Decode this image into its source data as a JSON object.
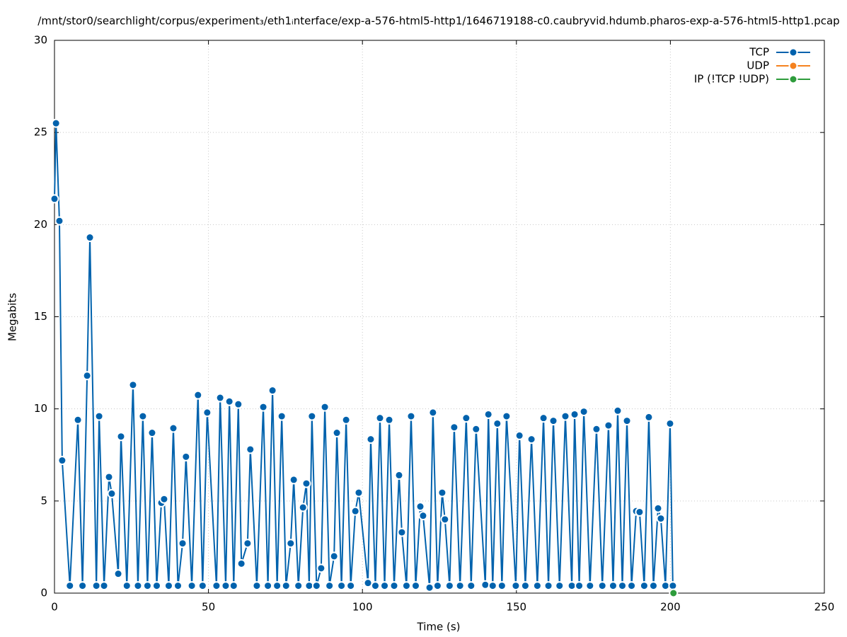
{
  "chart_data": {
    "type": "line",
    "title": "/mnt/stor0/searchlight/corpus/experiment₃/eth1ᵢnterface/exp-a-576-html5-http1/1646719188-c0.caubryvid.hdumb.pharos-exp-a-576-html5-http1.pcap",
    "x_label": "Time (s)",
    "y_label": "Megabits",
    "xlim": [
      0,
      250
    ],
    "ylim": [
      0,
      30
    ],
    "xticks": [
      0,
      50,
      100,
      150,
      200,
      250
    ],
    "yticks": [
      0,
      5,
      10,
      15,
      20,
      25,
      30
    ],
    "grid": true,
    "legend": "top-right",
    "series": [
      {
        "name": "TCP",
        "color": "#0062ad",
        "x": [
          0,
          0.5,
          1.6,
          2.5,
          5,
          7.6,
          9.1,
          10.6,
          11.5,
          13.6,
          14.5,
          16.1,
          17.7,
          18.6,
          20.7,
          21.6,
          23.5,
          25.5,
          27.1,
          28.7,
          30.2,
          31.7,
          33.2,
          34.7,
          35.6,
          37.1,
          38.6,
          40.1,
          41.6,
          42.7,
          44.6,
          46.6,
          48.1,
          49.6,
          52.6,
          53.8,
          55.6,
          56.8,
          58.2,
          59.7,
          60.7,
          62.7,
          63.6,
          65.7,
          67.8,
          69.3,
          70.8,
          72.3,
          73.8,
          75.2,
          76.7,
          77.7,
          79.2,
          80.7,
          81.8,
          82.7,
          83.6,
          85.1,
          86.6,
          87.8,
          89.3,
          90.8,
          91.7,
          93.2,
          94.7,
          96.2,
          97.7,
          98.8,
          101.8,
          102.7,
          104.2,
          105.7,
          107.2,
          108.7,
          110.3,
          111.9,
          112.8,
          114.3,
          115.8,
          117.3,
          118.8,
          119.7,
          121.8,
          122.9,
          124.4,
          125.9,
          126.8,
          128.3,
          129.8,
          131.7,
          133.7,
          135.3,
          136.9,
          139.9,
          140.9,
          142.3,
          143.8,
          145.3,
          146.8,
          149.8,
          151,
          152.9,
          154.9,
          156.8,
          158.8,
          160.4,
          162,
          164,
          165.9,
          168,
          168.9,
          170.4,
          171.9,
          173.9,
          176,
          177.9,
          179.9,
          181.4,
          182.9,
          184.4,
          185.9,
          187.4,
          188.9,
          190,
          191.5,
          193,
          194.5,
          196,
          196.9,
          198.4,
          199.9,
          200.8
        ],
        "values": [
          21.4,
          25.5,
          20.2,
          7.2,
          0.4,
          9.4,
          0.4,
          11.8,
          19.3,
          0.4,
          9.6,
          0.4,
          6.3,
          5.4,
          1.05,
          8.5,
          0.4,
          11.3,
          0.4,
          9.6,
          0.4,
          8.7,
          0.4,
          4.9,
          5.1,
          0.4,
          8.95,
          0.4,
          2.7,
          7.4,
          0.4,
          10.75,
          0.4,
          9.8,
          0.4,
          10.6,
          0.4,
          10.4,
          0.4,
          10.25,
          1.6,
          2.7,
          7.8,
          0.4,
          10.1,
          0.4,
          11,
          0.4,
          9.6,
          0.4,
          2.7,
          6.15,
          0.4,
          4.65,
          5.95,
          0.4,
          9.6,
          0.4,
          1.35,
          10.1,
          0.4,
          2,
          8.7,
          0.4,
          9.4,
          0.4,
          4.45,
          5.45,
          0.55,
          8.35,
          0.4,
          9.5,
          0.4,
          9.4,
          0.4,
          6.4,
          3.3,
          0.4,
          9.6,
          0.4,
          4.7,
          4.2,
          0.3,
          9.8,
          0.4,
          5.45,
          4,
          0.4,
          9,
          0.4,
          9.5,
          0.4,
          8.9,
          0.45,
          9.7,
          0.4,
          9.2,
          0.4,
          9.6,
          0.4,
          8.55,
          0.4,
          8.35,
          0.4,
          9.5,
          0.4,
          9.35,
          0.4,
          9.6,
          0.4,
          9.7,
          0.4,
          9.85,
          0.4,
          8.9,
          0.4,
          9.1,
          0.4,
          9.9,
          0.4,
          9.35,
          0.4,
          4.45,
          4.4,
          0.4,
          9.55,
          0.4,
          4.6,
          4.05,
          0.4,
          9.2,
          0.4
        ]
      },
      {
        "name": "UDP",
        "color": "#f5821f",
        "x": [],
        "values": []
      },
      {
        "name": "IP (!TCP  !UDP)",
        "color": "#2e9c3c",
        "x": [
          201
        ],
        "values": [
          0
        ]
      }
    ]
  }
}
